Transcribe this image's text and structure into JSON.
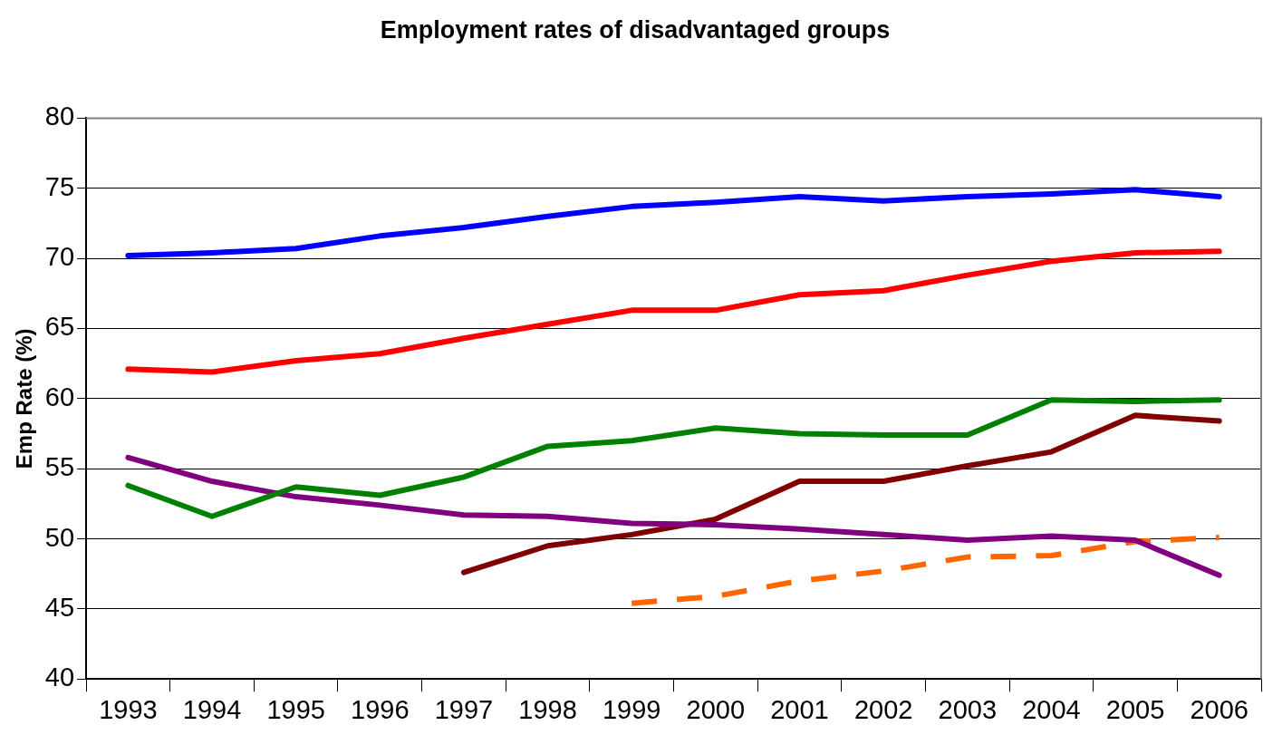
{
  "chart_data": {
    "type": "line",
    "title": "Employment rates of disadvantaged groups",
    "ylabel": "Emp Rate (%)",
    "categories": [
      "1993",
      "1994",
      "1995",
      "1996",
      "1997",
      "1998",
      "1999",
      "2000",
      "2001",
      "2002",
      "2003",
      "2004",
      "2005",
      "2006"
    ],
    "series": [
      {
        "color": "#0000ff",
        "line_style": "solid",
        "values": [
          70.2,
          70.4,
          70.7,
          71.6,
          72.2,
          73.0,
          73.7,
          74.0,
          74.4,
          74.1,
          74.4,
          74.6,
          74.9,
          74.4
        ]
      },
      {
        "color": "#ff0000",
        "line_style": "solid",
        "values": [
          62.1,
          61.9,
          62.7,
          63.2,
          64.3,
          65.3,
          66.3,
          66.3,
          67.4,
          67.7,
          68.8,
          69.8,
          70.4,
          70.5
        ]
      },
      {
        "color": "#008000",
        "line_style": "solid",
        "values": [
          53.8,
          51.6,
          53.7,
          53.1,
          54.4,
          56.6,
          57.0,
          57.9,
          57.5,
          57.4,
          57.4,
          59.9,
          59.8,
          59.9
        ]
      },
      {
        "color": "#800080",
        "line_style": "solid",
        "values": [
          55.8,
          54.1,
          53.0,
          52.4,
          51.7,
          51.6,
          51.1,
          51.0,
          50.7,
          50.3,
          49.9,
          50.2,
          49.9,
          47.4
        ]
      },
      {
        "color": "#800000",
        "line_style": "solid",
        "values": [
          null,
          null,
          null,
          null,
          47.6,
          49.5,
          50.3,
          51.4,
          54.1,
          54.1,
          55.2,
          56.2,
          58.8,
          58.4
        ]
      },
      {
        "color": "#ff6600",
        "line_style": "dashed",
        "values": [
          null,
          null,
          null,
          null,
          null,
          null,
          45.4,
          45.9,
          47.0,
          47.7,
          48.7,
          48.8,
          49.8,
          50.1
        ]
      }
    ],
    "ylim": [
      40,
      80
    ],
    "yticks": [
      40,
      45,
      50,
      55,
      60,
      65,
      70,
      75,
      80
    ],
    "grid": "y",
    "legend": false,
    "marker": "none"
  }
}
